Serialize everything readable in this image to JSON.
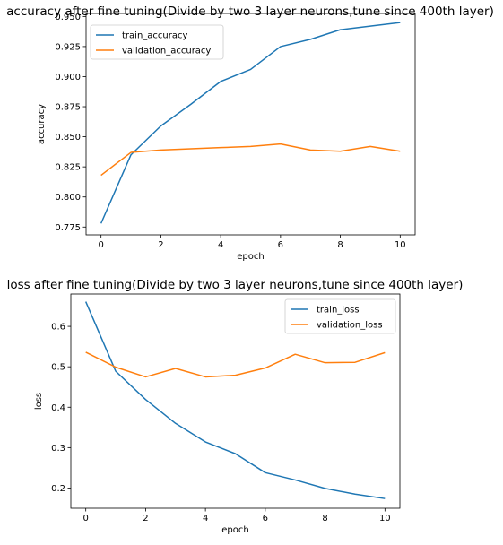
{
  "colors": {
    "train": "#1f77b4",
    "validation": "#ff7f0e",
    "axes": "#000000",
    "legend_border": "#cccccc"
  },
  "chart_data": [
    {
      "type": "line",
      "title": "accuracy after fine tuning(Divide by two 3 layer neurons,tune since 400th layer)",
      "xlabel": "epoch",
      "ylabel": "accuracy",
      "xlim": [
        -0.5,
        10.5
      ],
      "ylim": [
        0.7685,
        0.9525
      ],
      "xticks": [
        0,
        2,
        4,
        6,
        8,
        10
      ],
      "yticks": [
        0.775,
        0.8,
        0.825,
        0.85,
        0.875,
        0.9,
        0.925,
        0.95
      ],
      "ytick_labels": [
        "0.775",
        "0.800",
        "0.825",
        "0.850",
        "0.875",
        "0.900",
        "0.925",
        "0.950"
      ],
      "grid": false,
      "legend_position": "upper-left",
      "x": [
        0,
        1,
        2,
        3,
        4,
        5,
        6,
        7,
        8,
        9,
        10
      ],
      "series": [
        {
          "name": "train_accuracy",
          "color_key": "train",
          "values": [
            0.778,
            0.835,
            0.859,
            0.877,
            0.896,
            0.906,
            0.925,
            0.931,
            0.939,
            0.942,
            0.945
          ]
        },
        {
          "name": "validation_accuracy",
          "color_key": "validation",
          "values": [
            0.818,
            0.837,
            0.839,
            0.84,
            0.841,
            0.842,
            0.844,
            0.839,
            0.838,
            0.842,
            0.838
          ]
        }
      ]
    },
    {
      "type": "line",
      "title": "loss after fine tuning(Divide by two 3 layer neurons,tune since 400th layer)",
      "xlabel": "epoch",
      "ylabel": "loss",
      "xlim": [
        -0.5,
        10.5
      ],
      "ylim": [
        0.15,
        0.68
      ],
      "xticks": [
        0,
        2,
        4,
        6,
        8,
        10
      ],
      "yticks": [
        0.2,
        0.3,
        0.4,
        0.5,
        0.6
      ],
      "ytick_labels": [
        "0.2",
        "0.3",
        "0.4",
        "0.5",
        "0.6"
      ],
      "grid": false,
      "legend_position": "upper-right",
      "x": [
        0,
        1,
        2,
        3,
        4,
        5,
        6,
        7,
        8,
        9,
        10
      ],
      "series": [
        {
          "name": "train_loss",
          "color_key": "train",
          "values": [
            0.661,
            0.489,
            0.419,
            0.36,
            0.314,
            0.285,
            0.238,
            0.22,
            0.199,
            0.185,
            0.174
          ]
        },
        {
          "name": "validation_loss",
          "color_key": "validation",
          "values": [
            0.536,
            0.499,
            0.475,
            0.496,
            0.475,
            0.479,
            0.497,
            0.531,
            0.51,
            0.511,
            0.535
          ]
        }
      ]
    }
  ]
}
